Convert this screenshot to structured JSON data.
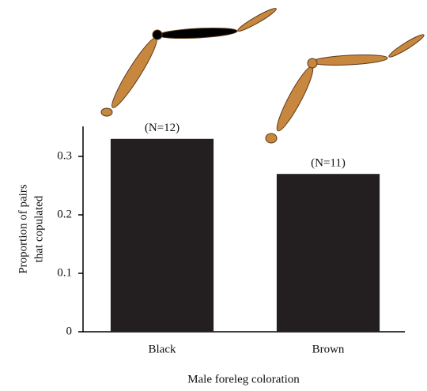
{
  "chart_data": {
    "type": "bar",
    "xlabel": "Male foreleg coloration",
    "ylabel": [
      "Proportion of pairs",
      "that copulated"
    ],
    "categories": [
      "Black",
      "Brown"
    ],
    "values": [
      0.33,
      0.27
    ],
    "bar_labels": [
      "(N=12)",
      "(N=11)"
    ],
    "color": "#231f20",
    "ylim": [
      0,
      0.35
    ],
    "yticks": [
      0,
      0.1,
      0.2,
      0.3
    ],
    "grid": false
  }
}
